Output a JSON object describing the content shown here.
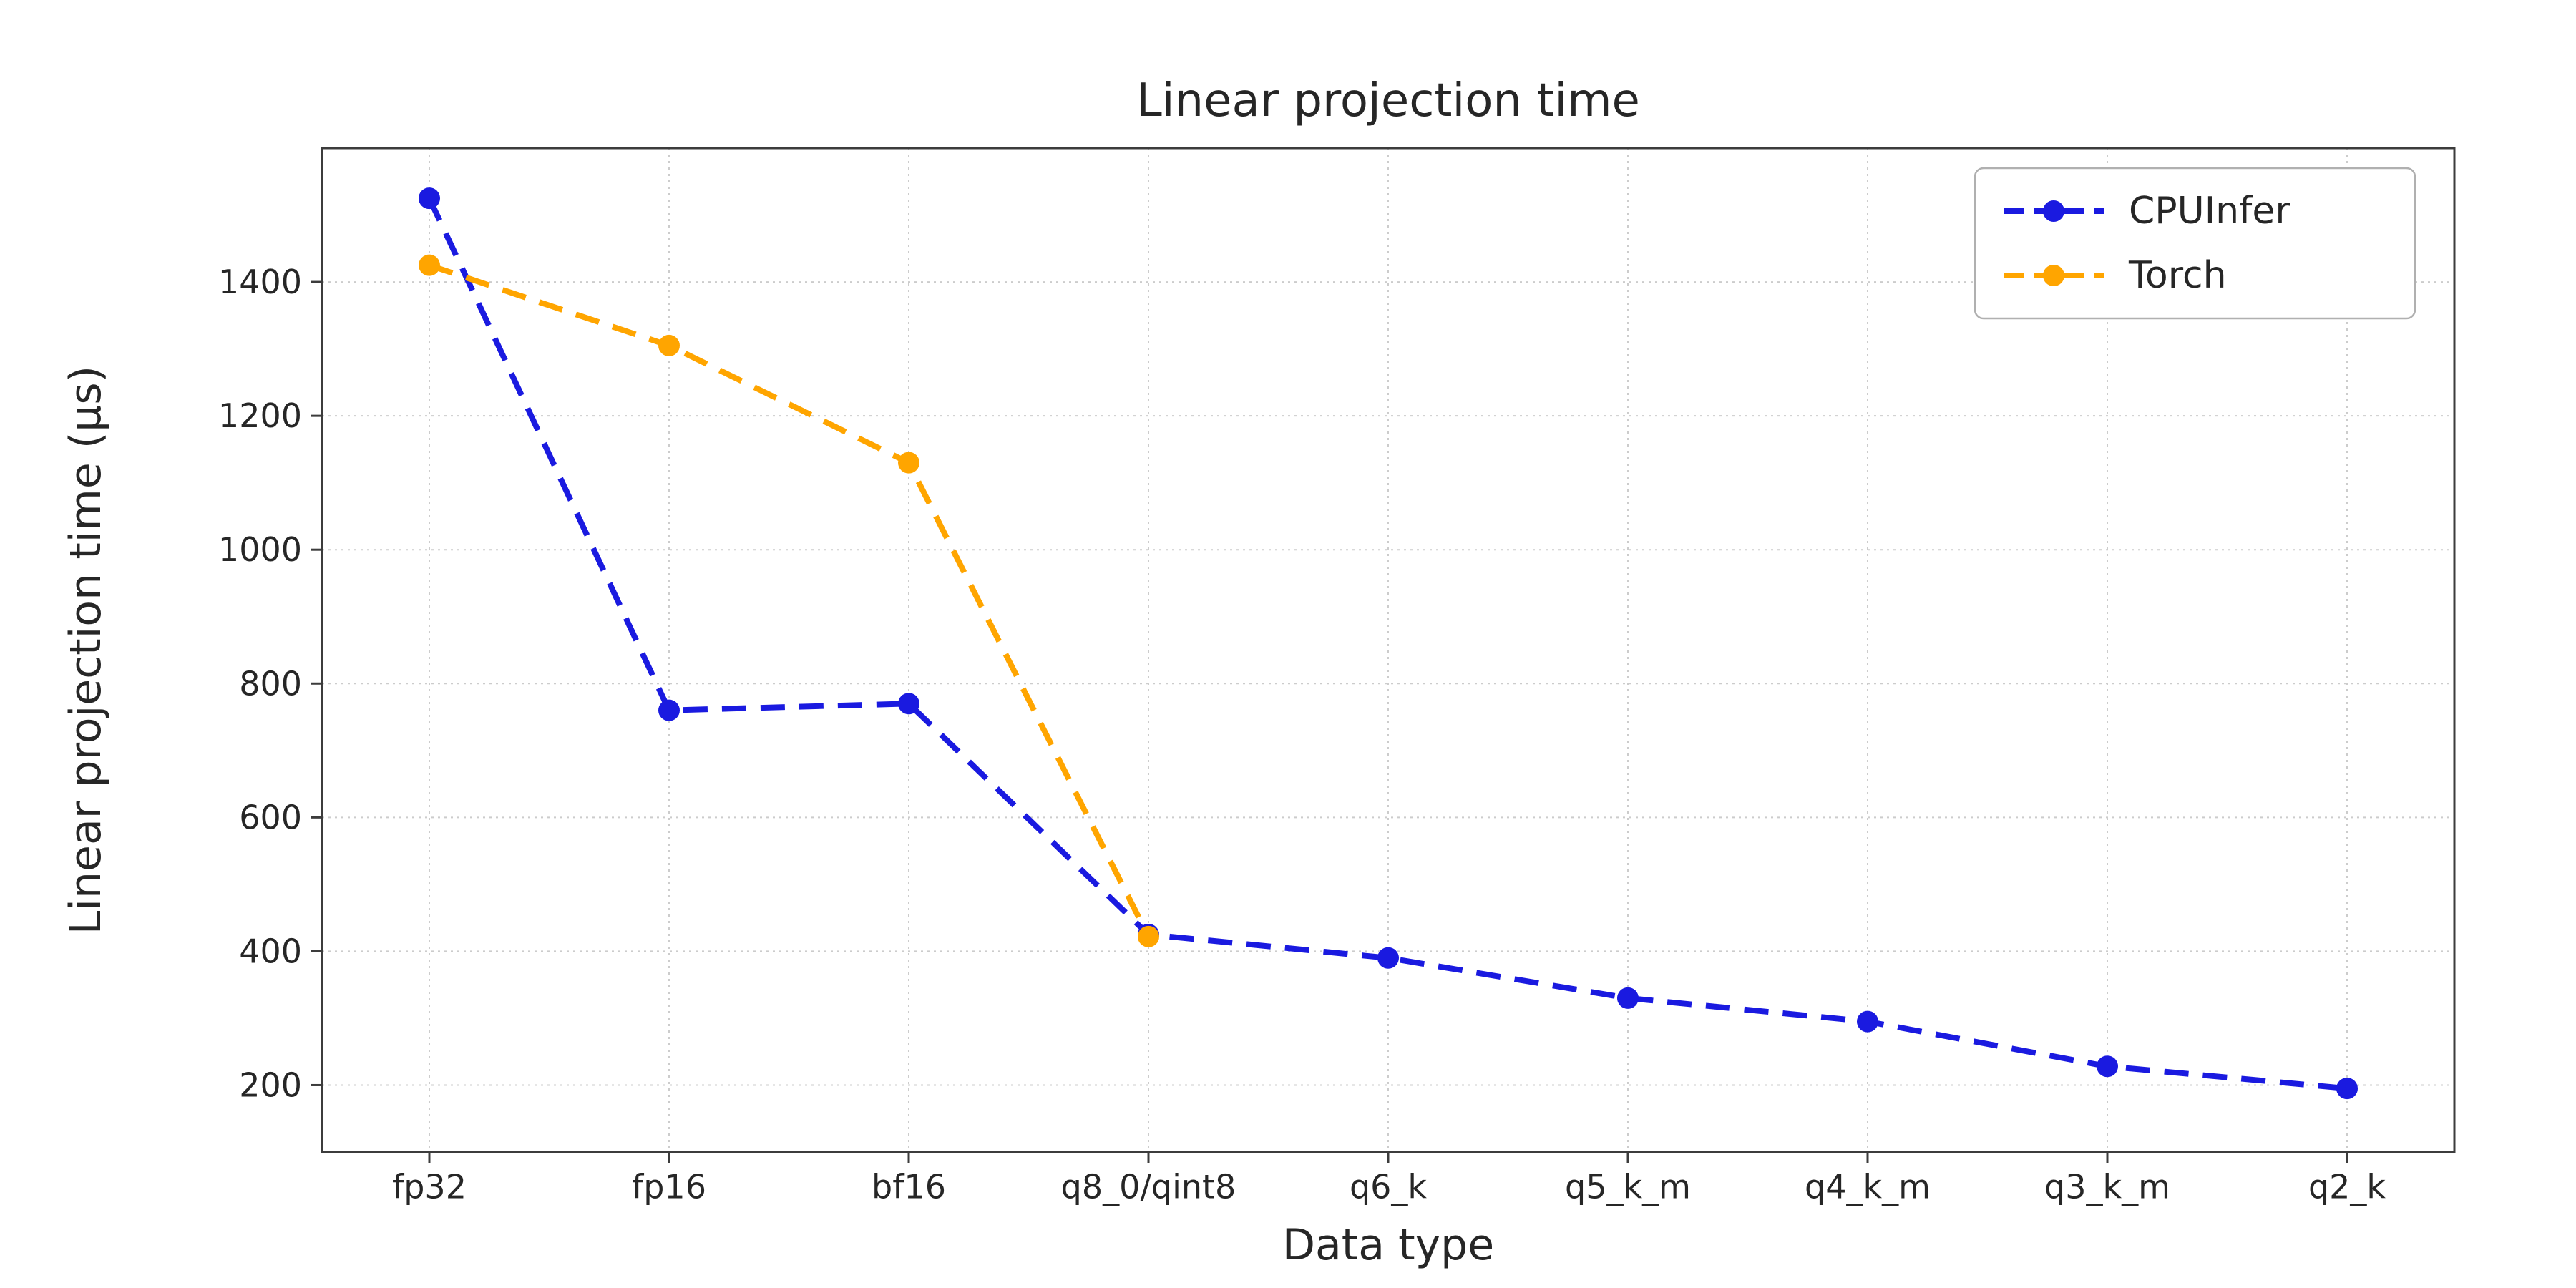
{
  "chart_data": {
    "type": "line",
    "title": "Linear projection time",
    "xlabel": "Data type",
    "ylabel": "Linear projection time (µs)",
    "categories": [
      "fp32",
      "fp16",
      "bf16",
      "q8_0/qint8",
      "q6_k",
      "q5_k_m",
      "q4_k_m",
      "q3_k_m",
      "q2_k"
    ],
    "series": [
      {
        "name": "CPUInfer",
        "color": "#1a1ae0",
        "values": [
          1525,
          760,
          770,
          425,
          390,
          330,
          295,
          228,
          195
        ]
      },
      {
        "name": "Torch",
        "color": "#ffa500",
        "values": [
          1425,
          1305,
          1130,
          422,
          null,
          null,
          null,
          null,
          null
        ]
      }
    ],
    "ylim": [
      100,
      1600
    ],
    "yticks": [
      200,
      400,
      600,
      800,
      1000,
      1200,
      1400
    ],
    "grid": true,
    "grid_style": "dotted",
    "line_style": "dashed",
    "marker": "circle",
    "legend_position": "upper right"
  },
  "colors": {
    "background": "#ffffff",
    "grid": "#cccccc",
    "spine": "#3c3c3c",
    "text": "#262626",
    "legend_border": "#b0b0b0"
  }
}
